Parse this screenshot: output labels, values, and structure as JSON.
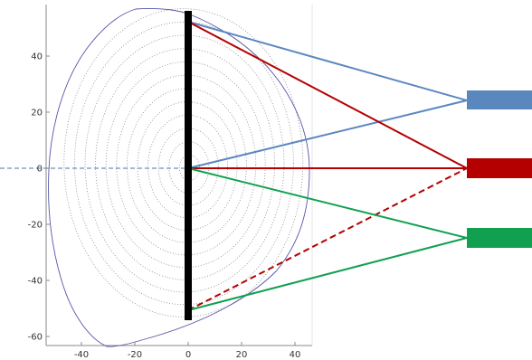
{
  "x_ticks": [
    {
      "value": -40,
      "label": "-40"
    },
    {
      "value": -20,
      "label": "-20"
    },
    {
      "value": 0,
      "label": "0"
    },
    {
      "value": 20,
      "label": "20"
    },
    {
      "value": 40,
      "label": "40"
    }
  ],
  "y_ticks": [
    {
      "value": 40,
      "label": "40"
    },
    {
      "value": 20,
      "label": "20"
    },
    {
      "value": 0,
      "label": "0"
    },
    {
      "value": -20,
      "label": "-20"
    },
    {
      "value": -40,
      "label": "-40"
    },
    {
      "value": -60,
      "label": "-60"
    }
  ],
  "colors": {
    "axis": "#666666",
    "boundary": "#5555aa",
    "flux_surface": "#888888",
    "midplane": "#6b8fc0",
    "chord": "#111111",
    "blue": "#5b87bf",
    "red": "#b40000",
    "green": "#10a050"
  }
}
